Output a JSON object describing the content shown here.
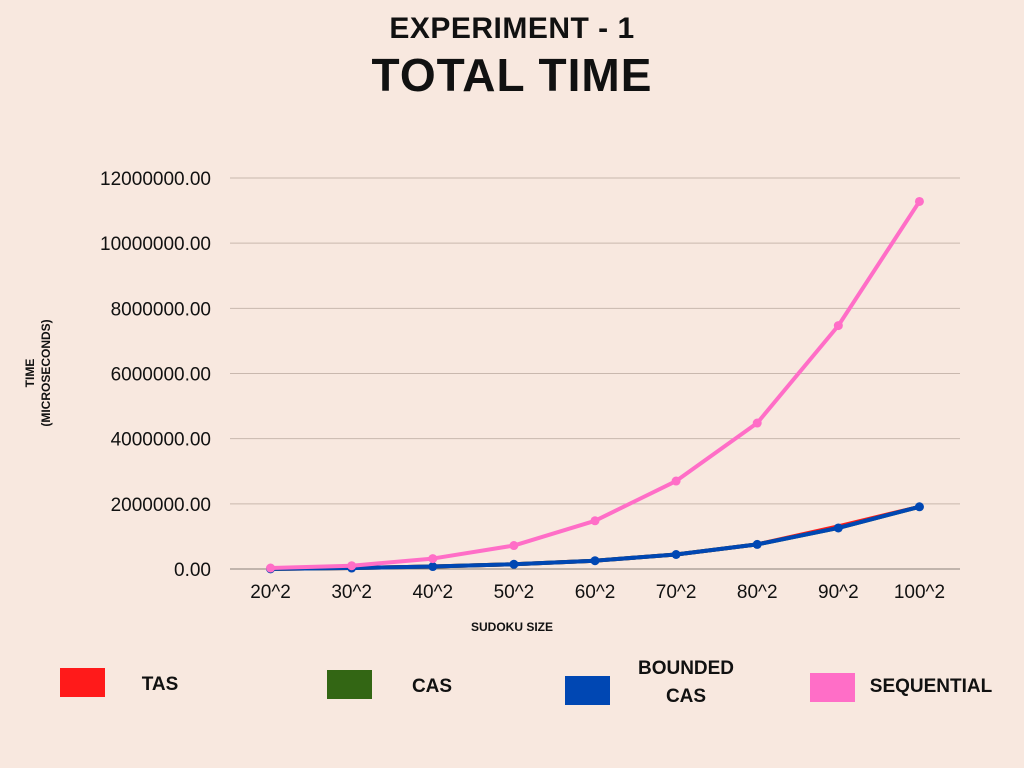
{
  "chart_data": {
    "type": "line",
    "title": "EXPERIMENT - 1",
    "subtitle": "TOTAL TIME",
    "xlabel": "SUDOKU SIZE",
    "ylabel_line1": "TIME",
    "ylabel_line2": "(MICROSECONDS)",
    "categories": [
      "20^2",
      "30^2",
      "40^2",
      "50^2",
      "60^2",
      "70^2",
      "80^2",
      "90^2",
      "100^2"
    ],
    "ylim": [
      0,
      12000000
    ],
    "yticks": [
      {
        "value": 0,
        "label": "0.00"
      },
      {
        "value": 2000000,
        "label": "2000000.00"
      },
      {
        "value": 4000000,
        "label": "4000000.00"
      },
      {
        "value": 6000000,
        "label": "6000000.00"
      },
      {
        "value": 8000000,
        "label": "8000000.00"
      },
      {
        "value": 10000000,
        "label": "10000000.00"
      },
      {
        "value": 12000000,
        "label": "12000000.00"
      }
    ],
    "grid": true,
    "legend_position": "bottom",
    "series": [
      {
        "name": "TAS",
        "color": "#ff1a1a",
        "marker": false,
        "values": [
          5000,
          30000,
          75000,
          145000,
          255000,
          445000,
          755000,
          1310000,
          1910000
        ]
      },
      {
        "name": "CAS",
        "color": "#336614",
        "marker": false,
        "values": [
          5000,
          30000,
          75000,
          145000,
          255000,
          445000,
          755000,
          1260000,
          1910000
        ]
      },
      {
        "name": "BOUNDED CAS",
        "name_line1": "BOUNDED",
        "name_line2": "CAS",
        "color": "#0047b3",
        "marker": true,
        "values": [
          5000,
          30000,
          75000,
          145000,
          255000,
          445000,
          755000,
          1260000,
          1910000
        ]
      },
      {
        "name": "SEQUENTIAL",
        "color": "#ff6ec7",
        "marker": true,
        "values": [
          30000,
          100000,
          320000,
          720000,
          1480000,
          2700000,
          4480000,
          7470000,
          11280000
        ]
      }
    ]
  }
}
